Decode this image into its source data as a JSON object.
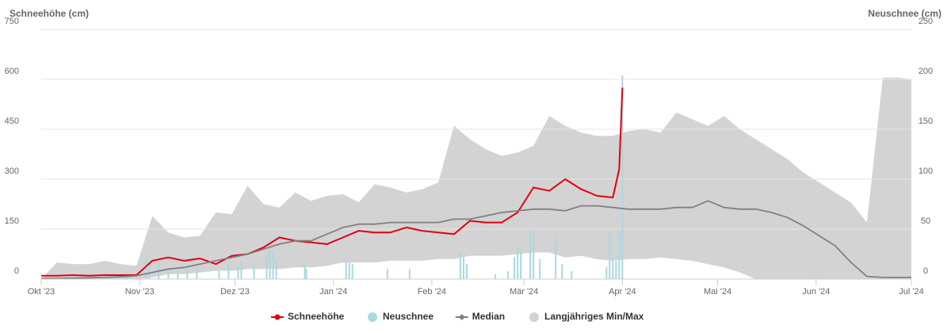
{
  "chart_data": {
    "type": "combo",
    "y_title": "Schneehöhe (cm)",
    "y2_title": "Neuschnee (cm)",
    "xlim": [
      0,
      274
    ],
    "xticks": [
      {
        "value": 0,
        "label": "Okt '23"
      },
      {
        "value": 31,
        "label": "Nov '23"
      },
      {
        "value": 61,
        "label": "Dez '23"
      },
      {
        "value": 92,
        "label": "Jan '24"
      },
      {
        "value": 123,
        "label": "Feb '24"
      },
      {
        "value": 152,
        "label": "Mär '24"
      },
      {
        "value": 183,
        "label": "Apr '24"
      },
      {
        "value": 213,
        "label": "Mai '24"
      },
      {
        "value": 244,
        "label": "Jun '24"
      },
      {
        "value": 274,
        "label": "Jul '24"
      }
    ],
    "ylim": [
      0,
      750
    ],
    "yticks": [
      0,
      150,
      300,
      450,
      600,
      750
    ],
    "y2lim": [
      0,
      250
    ],
    "y2ticks": [
      0,
      50,
      100,
      150,
      200,
      250
    ],
    "grid": true,
    "legend": "bottom",
    "series": [
      {
        "name": "Schneehöhe",
        "type": "line",
        "marker": "circle",
        "color": "#e3000f",
        "x": [
          0,
          5,
          10,
          15,
          20,
          25,
          30,
          35,
          40,
          45,
          50,
          55,
          60,
          65,
          70,
          75,
          80,
          85,
          90,
          95,
          100,
          105,
          110,
          115,
          120,
          125,
          130,
          135,
          140,
          145,
          150,
          155,
          160,
          165,
          170,
          175,
          180,
          182,
          183
        ],
        "values": [
          10,
          10,
          12,
          10,
          12,
          12,
          12,
          55,
          65,
          55,
          62,
          45,
          70,
          75,
          95,
          125,
          115,
          110,
          105,
          125,
          145,
          140,
          140,
          155,
          145,
          140,
          135,
          175,
          170,
          170,
          200,
          275,
          265,
          300,
          270,
          250,
          245,
          330,
          575
        ]
      },
      {
        "name": "Neuschnee",
        "type": "bar",
        "marker": "circle",
        "axis": "y2",
        "color": "#a8d8e0",
        "x": [
          16.5,
          17,
          21,
          27,
          33,
          34,
          37,
          40,
          43,
          46,
          49,
          56,
          59,
          62,
          63,
          67,
          71,
          72,
          73,
          74,
          83,
          83.5,
          96,
          97,
          98,
          109,
          116,
          132,
          133,
          134,
          143,
          147,
          149,
          150,
          151,
          154,
          155,
          157,
          162,
          164,
          167,
          178,
          179,
          180,
          181,
          182,
          183
        ],
        "values": [
          5,
          5,
          3,
          4,
          22,
          18,
          17,
          10,
          8,
          12,
          10,
          8,
          15,
          12,
          18,
          15,
          25,
          35,
          28,
          18,
          15,
          10,
          18,
          17,
          15,
          10,
          10,
          28,
          22,
          15,
          5,
          8,
          22,
          32,
          28,
          48,
          50,
          20,
          45,
          15,
          8,
          12,
          48,
          22,
          18,
          48,
          204
        ]
      },
      {
        "name": "Median",
        "type": "line",
        "marker": "diamond",
        "color": "#808080",
        "x": [
          0,
          5,
          10,
          15,
          20,
          25,
          30,
          35,
          40,
          45,
          50,
          55,
          60,
          65,
          70,
          75,
          80,
          85,
          90,
          95,
          100,
          105,
          110,
          115,
          120,
          125,
          130,
          135,
          140,
          145,
          150,
          155,
          160,
          165,
          170,
          175,
          180,
          185,
          190,
          195,
          200,
          205,
          210,
          215,
          220,
          225,
          230,
          235,
          240,
          245,
          250,
          255,
          260,
          265,
          270,
          274
        ],
        "values": [
          2,
          2,
          3,
          4,
          5,
          7,
          10,
          20,
          30,
          35,
          45,
          55,
          65,
          75,
          90,
          105,
          115,
          115,
          135,
          155,
          165,
          165,
          170,
          170,
          170,
          170,
          180,
          180,
          190,
          200,
          205,
          210,
          210,
          205,
          220,
          220,
          215,
          210,
          210,
          210,
          215,
          215,
          235,
          215,
          210,
          210,
          200,
          185,
          160,
          130,
          100,
          50,
          8,
          5,
          5,
          5
        ]
      },
      {
        "name": "Langjähriges Min/Max",
        "type": "arearange",
        "marker": "circle",
        "color": "#d3d3d3",
        "x": [
          0,
          5,
          10,
          15,
          20,
          25,
          30,
          35,
          40,
          45,
          50,
          55,
          60,
          65,
          70,
          75,
          80,
          85,
          90,
          95,
          100,
          105,
          110,
          115,
          120,
          125,
          130,
          135,
          140,
          145,
          150,
          155,
          160,
          165,
          170,
          175,
          180,
          185,
          190,
          195,
          200,
          205,
          210,
          215,
          220,
          225,
          230,
          235,
          240,
          245,
          250,
          255,
          260,
          265,
          270,
          274
        ],
        "low": [
          0,
          0,
          0,
          0,
          0,
          0,
          0,
          5,
          15,
          15,
          20,
          25,
          25,
          30,
          30,
          30,
          35,
          35,
          40,
          50,
          50,
          50,
          55,
          55,
          55,
          60,
          60,
          70,
          70,
          70,
          75,
          80,
          80,
          65,
          70,
          60,
          55,
          60,
          60,
          65,
          60,
          55,
          45,
          35,
          20,
          0,
          0,
          0,
          0,
          0,
          0,
          0,
          0,
          0,
          0,
          0
        ],
        "high": [
          0,
          50,
          45,
          45,
          55,
          45,
          40,
          190,
          140,
          125,
          130,
          200,
          195,
          280,
          225,
          215,
          260,
          235,
          250,
          255,
          230,
          285,
          275,
          260,
          270,
          290,
          460,
          420,
          390,
          370,
          380,
          400,
          490,
          460,
          440,
          430,
          430,
          445,
          450,
          440,
          500,
          480,
          460,
          490,
          450,
          420,
          390,
          360,
          320,
          290,
          260,
          230,
          170,
          605,
          605,
          600
        ]
      }
    ]
  }
}
